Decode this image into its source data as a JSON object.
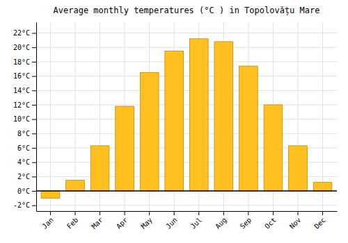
{
  "chart_data": {
    "type": "bar",
    "title": "Average monthly temperatures (°C ) in Topolovățu Mare",
    "categories": [
      "Jan",
      "Feb",
      "Mar",
      "Apr",
      "May",
      "Jun",
      "Jul",
      "Aug",
      "Sep",
      "Oct",
      "Nov",
      "Dec"
    ],
    "values": [
      -1.0,
      1.5,
      6.3,
      11.8,
      16.5,
      19.5,
      21.2,
      20.8,
      17.4,
      12.0,
      6.3,
      1.2
    ],
    "color": "#FFC020",
    "ylim": [
      -2.8,
      23.5
    ],
    "yticks": [
      {
        "value": -2,
        "label": "-2°C"
      },
      {
        "value": 0,
        "label": "0°C"
      },
      {
        "value": 2,
        "label": "2°C"
      },
      {
        "value": 4,
        "label": "4°C"
      },
      {
        "value": 6,
        "label": "6°C"
      },
      {
        "value": 8,
        "label": "8°C"
      },
      {
        "value": 10,
        "label": "10°C"
      },
      {
        "value": 12,
        "label": "12°C"
      },
      {
        "value": 14,
        "label": "14°C"
      },
      {
        "value": 16,
        "label": "16°C"
      },
      {
        "value": 18,
        "label": "18°C"
      },
      {
        "value": 20,
        "label": "20°C"
      },
      {
        "value": 22,
        "label": "22°C"
      }
    ],
    "grid": true
  }
}
